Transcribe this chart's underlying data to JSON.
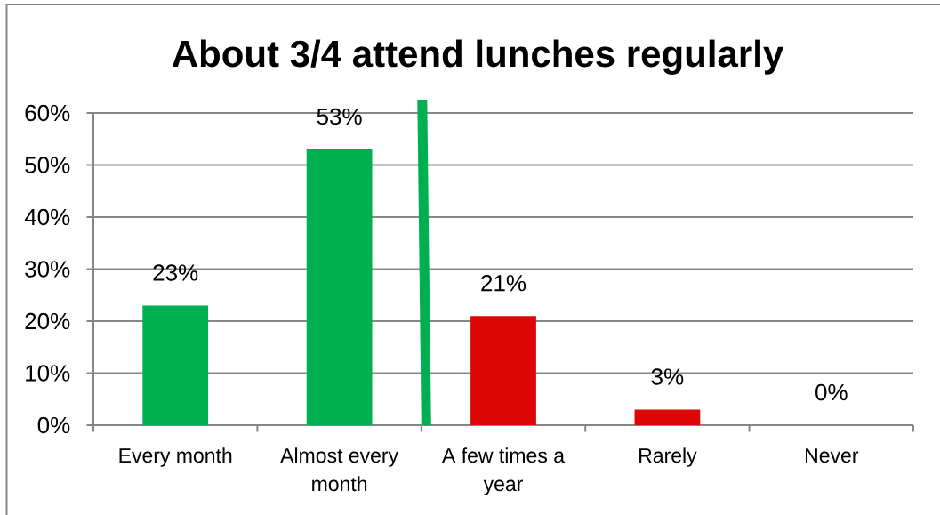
{
  "chart_data": {
    "type": "bar",
    "title": "About 3/4 attend lunches regularly",
    "categories": [
      "Every month",
      "Almost every month",
      "A few times a year",
      "Rarely",
      "Never"
    ],
    "values": [
      23,
      53,
      21,
      3,
      0
    ],
    "colors": [
      "#00b050",
      "#00b050",
      "#dc0606",
      "#dc0606",
      "#dc0606"
    ],
    "value_labels": [
      "23%",
      "53%",
      "21%",
      "3%",
      "0%"
    ],
    "ylim": [
      0,
      60
    ],
    "yticks": [
      {
        "value": 0,
        "label": "0%"
      },
      {
        "value": 10,
        "label": "10%"
      },
      {
        "value": 20,
        "label": "20%"
      },
      {
        "value": 30,
        "label": "30%"
      },
      {
        "value": 40,
        "label": "40%"
      },
      {
        "value": 50,
        "label": "50%"
      },
      {
        "value": 60,
        "label": "60%"
      }
    ],
    "grid": "y"
  }
}
